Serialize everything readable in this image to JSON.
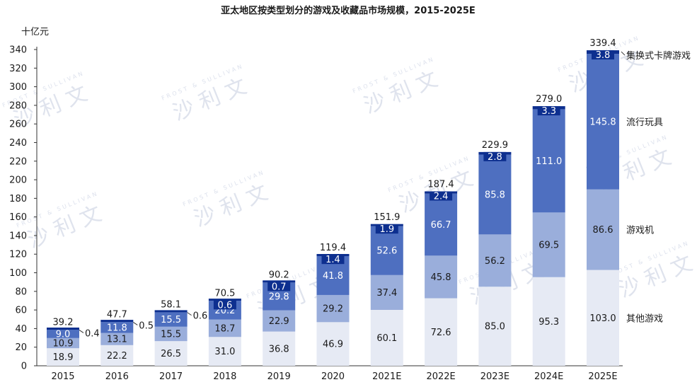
{
  "chart_data": {
    "type": "bar",
    "stacked": true,
    "title": "亚太地区按类型划分的游戏及收藏品市场规模，2015-2025E",
    "unit": "十亿元",
    "ylim": [
      0,
      340
    ],
    "yticks": [
      0,
      20,
      40,
      60,
      80,
      100,
      120,
      140,
      160,
      180,
      200,
      220,
      240,
      260,
      280,
      300,
      320,
      340
    ],
    "categories": [
      "2015",
      "2016",
      "2017",
      "2018",
      "2019",
      "2020",
      "2021E",
      "2022E",
      "2023E",
      "2024E",
      "2025E"
    ],
    "series": [
      {
        "name": "其他游戏",
        "color": "#e6eaf4",
        "label_color": "#1a1a1a",
        "values": [
          18.9,
          22.2,
          26.5,
          31.0,
          36.8,
          46.9,
          60.1,
          72.6,
          85.0,
          95.3,
          103.0
        ]
      },
      {
        "name": "游戏机",
        "color": "#9aaedb",
        "label_color": "#1a1a1a",
        "values": [
          10.9,
          13.1,
          15.5,
          18.7,
          22.9,
          29.2,
          37.4,
          45.8,
          56.2,
          69.5,
          86.6
        ]
      },
      {
        "name": "流行玩具",
        "color": "#4e6fc0",
        "label_color": "#ffffff",
        "values": [
          9.0,
          11.8,
          15.5,
          20.2,
          29.8,
          41.8,
          52.6,
          66.7,
          85.8,
          111.0,
          145.8
        ]
      },
      {
        "name": "集换式卡牌游戏",
        "color": "#0d2f8f",
        "label_color": "#ffffff",
        "values": [
          0.4,
          0.5,
          0.6,
          0.6,
          0.7,
          1.4,
          1.9,
          2.4,
          2.8,
          3.3,
          3.8
        ]
      }
    ],
    "totals": [
      39.2,
      47.7,
      58.1,
      70.5,
      90.2,
      119.4,
      151.9,
      187.4,
      229.9,
      279.0,
      339.4
    ],
    "grid": false,
    "legend_position": "right"
  },
  "watermark": {
    "text": "沙 利 文",
    "subtext": "FROST & SULLIVAN"
  }
}
